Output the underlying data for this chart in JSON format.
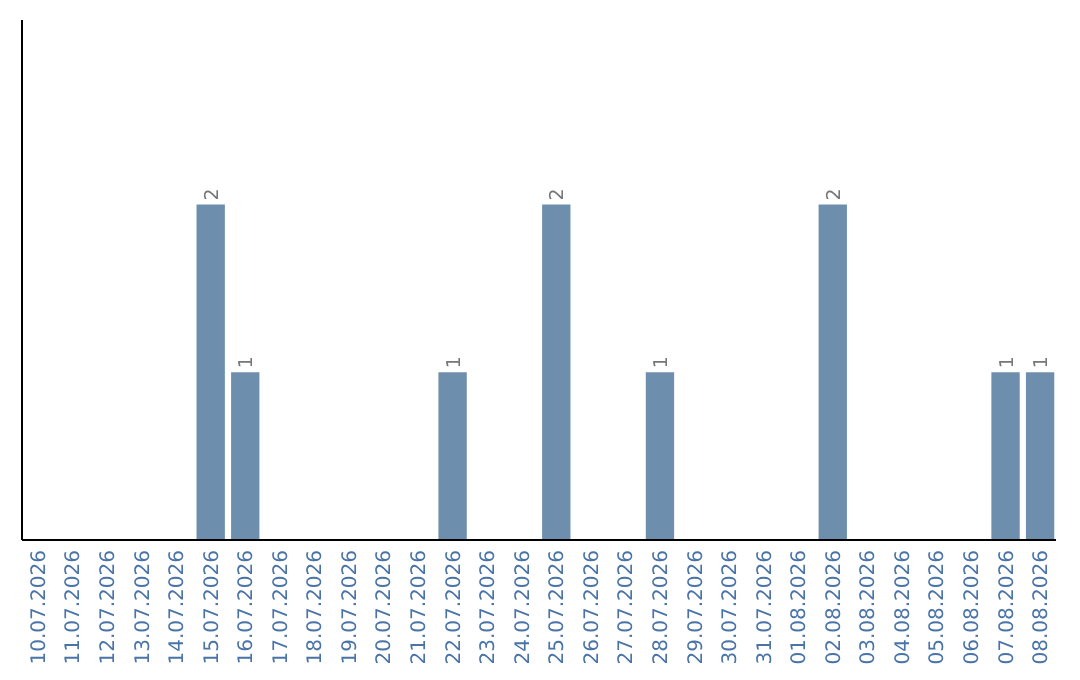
{
  "chart_data": {
    "type": "bar",
    "categories": [
      "10.07.2026",
      "11.07.2026",
      "12.07.2026",
      "13.07.2026",
      "14.07.2026",
      "15.07.2026",
      "16.07.2026",
      "17.07.2026",
      "18.07.2026",
      "19.07.2026",
      "20.07.2026",
      "21.07.2026",
      "22.07.2026",
      "23.07.2026",
      "24.07.2026",
      "25.07.2026",
      "26.07.2026",
      "27.07.2026",
      "28.07.2026",
      "29.07.2026",
      "30.07.2026",
      "31.07.2026",
      "01.08.2026",
      "02.08.2026",
      "03.08.2026",
      "04.08.2026",
      "05.08.2026",
      "06.08.2026",
      "07.08.2026",
      "08.08.2026"
    ],
    "values": [
      0,
      0,
      0,
      0,
      0,
      2,
      1,
      0,
      0,
      0,
      0,
      0,
      1,
      0,
      0,
      2,
      0,
      0,
      1,
      0,
      0,
      0,
      0,
      2,
      0,
      0,
      0,
      0,
      1,
      1
    ],
    "value_labels": [
      null,
      null,
      null,
      null,
      null,
      "2",
      "1",
      null,
      null,
      null,
      null,
      null,
      "1",
      null,
      null,
      "2",
      null,
      null,
      "1",
      null,
      null,
      null,
      null,
      "2",
      null,
      null,
      null,
      null,
      "1",
      "1"
    ],
    "color": "#6d8fad",
    "ylim": [
      0,
      3.1
    ],
    "tick_labels": "x"
  }
}
